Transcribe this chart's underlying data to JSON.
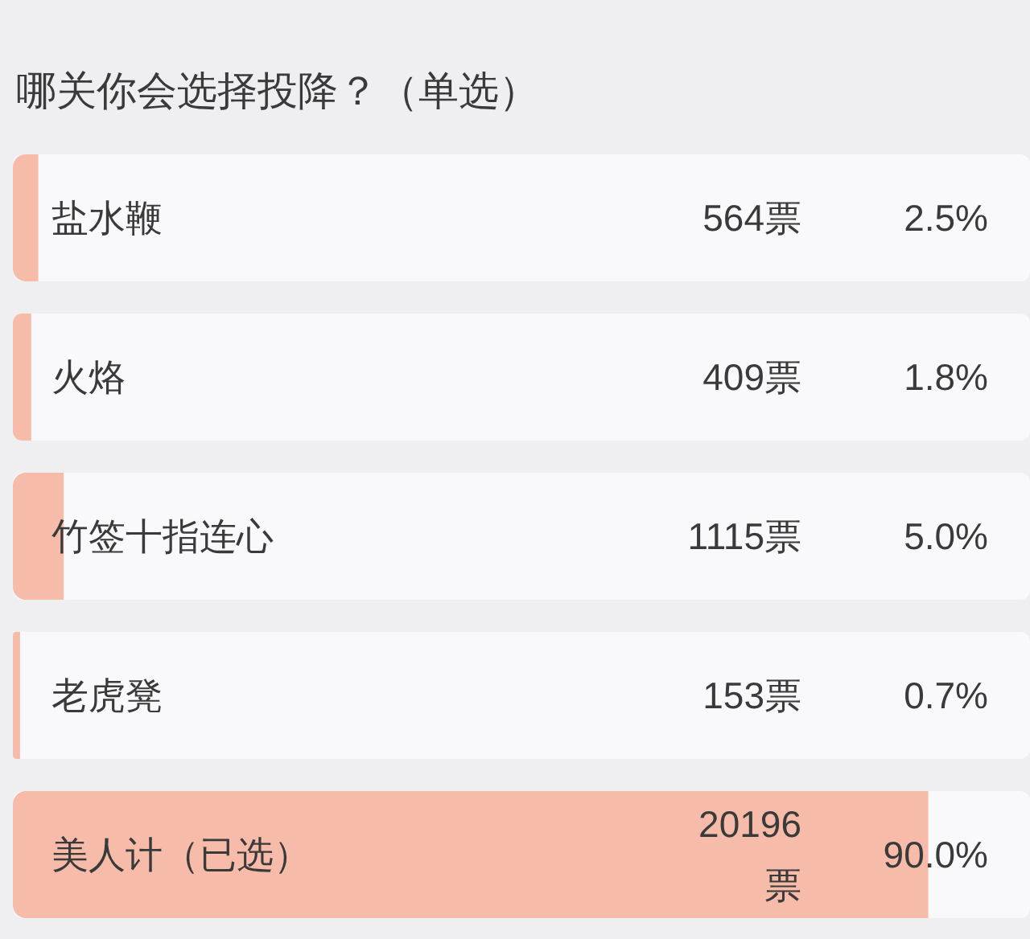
{
  "chart_data": {
    "type": "bar",
    "orientation": "horizontal",
    "title": "哪关你会选择投降？（单选）",
    "categories": [
      "盐水鞭",
      "火烙",
      "竹签十指连心",
      "老虎凳",
      "美人计（已选）"
    ],
    "values": [
      2.5,
      1.8,
      5.0,
      0.7,
      90.0
    ],
    "value_labels": [
      "2.5%",
      "1.8%",
      "5.0%",
      "0.7%",
      "90.0%"
    ],
    "color": "#f7bba9",
    "xlim": [
      0,
      100
    ],
    "tick_labels": "y",
    "annotations": [
      "564票",
      "409票",
      "1115票",
      "153票",
      "20196票"
    ]
  }
}
